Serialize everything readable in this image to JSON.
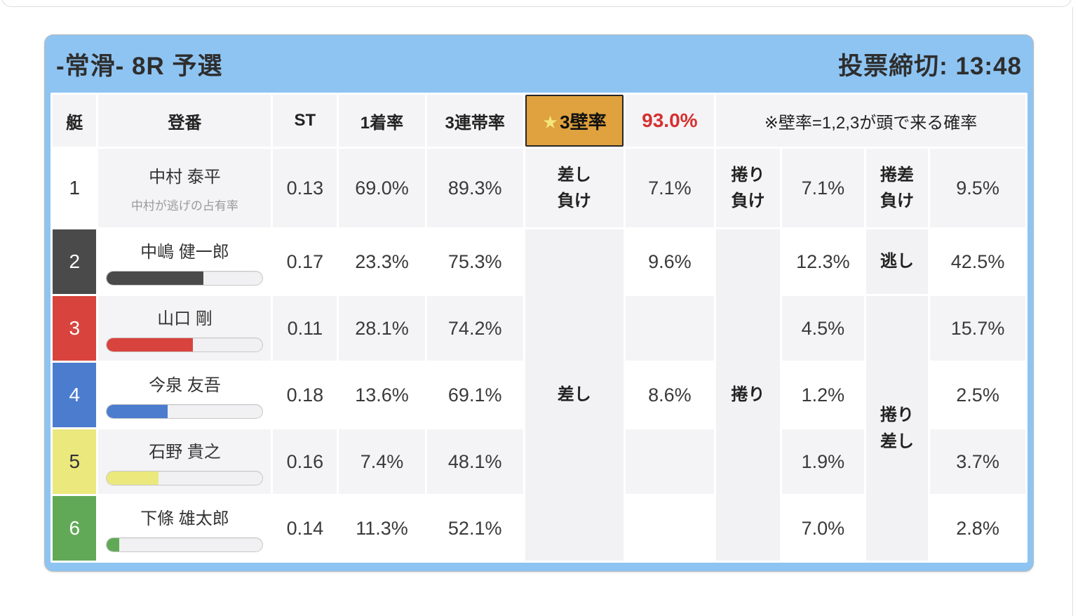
{
  "header": {
    "title": "-常滑- 8R 予選",
    "deadline": "投票締切: 13:48"
  },
  "table": {
    "headers": {
      "boat": "艇",
      "racer": "登番",
      "st": "ST",
      "first_rate": "1着率",
      "top3_rate": "3連帯率",
      "wall_star": "★",
      "wall_label": "3壁率",
      "wall_value": "93.0%",
      "note": "※壁率=1,2,3が頭で来る確率"
    },
    "row1_labels": {
      "sashi_lose_l1": "差し",
      "sashi_lose_l2": "負け",
      "makuri_lose_l1": "捲り",
      "makuri_lose_l2": "負け",
      "makusa_lose_l1": "捲差",
      "makusa_lose_l2": "負け"
    },
    "group_labels": {
      "sashi": "差し",
      "makuri": "捲り",
      "nigashi": "逃し",
      "makurizashi_l1": "捲り",
      "makurizashi_l2": "差し"
    },
    "rows": [
      {
        "boat": "1",
        "name": "中村 泰平",
        "sub": "中村が逃げの占有率",
        "st": "0.13",
        "first": "69.0%",
        "top3": "89.3%",
        "v1": "7.1%",
        "v2": "7.1%",
        "v3": "9.5%",
        "color": "#ffffff",
        "bar": null
      },
      {
        "boat": "2",
        "name": "中嶋 健一郎",
        "st": "0.17",
        "first": "23.3%",
        "top3": "75.3%",
        "v1": "9.6%",
        "v2": "12.3%",
        "v3": "42.5%",
        "color": "#4a4a4a",
        "bar": 62
      },
      {
        "boat": "3",
        "name": "山口 剛",
        "st": "0.11",
        "first": "28.1%",
        "top3": "74.2%",
        "v1": "",
        "v2": "4.5%",
        "v3": "15.7%",
        "color": "#d8443d",
        "bar": 55
      },
      {
        "boat": "4",
        "name": "今泉 友吾",
        "st": "0.18",
        "first": "13.6%",
        "top3": "69.1%",
        "v1": "8.6%",
        "v2": "1.2%",
        "v3": "2.5%",
        "color": "#4c7cce",
        "bar": 39
      },
      {
        "boat": "5",
        "name": "石野 貴之",
        "st": "0.16",
        "first": "7.4%",
        "top3": "48.1%",
        "v1": "",
        "v2": "1.9%",
        "v3": "3.7%",
        "color": "#ebe87e",
        "bar": 33
      },
      {
        "boat": "6",
        "name": "下條 雄太郎",
        "st": "0.14",
        "first": "11.3%",
        "top3": "52.1%",
        "v1": "",
        "v2": "7.0%",
        "v3": "2.8%",
        "color": "#61a957",
        "bar": 8
      }
    ]
  },
  "colors": {
    "accent_blue": "#8ec4f2",
    "cell_gray": "#f4f4f6",
    "merged_gray": "#f2f2f4",
    "highlight_orange": "#dfa23e",
    "value_red": "#d63031",
    "boat_colors": [
      "#ffffff",
      "#4a4a4a",
      "#d8443d",
      "#4c7cce",
      "#ebe87e",
      "#61a957"
    ]
  }
}
